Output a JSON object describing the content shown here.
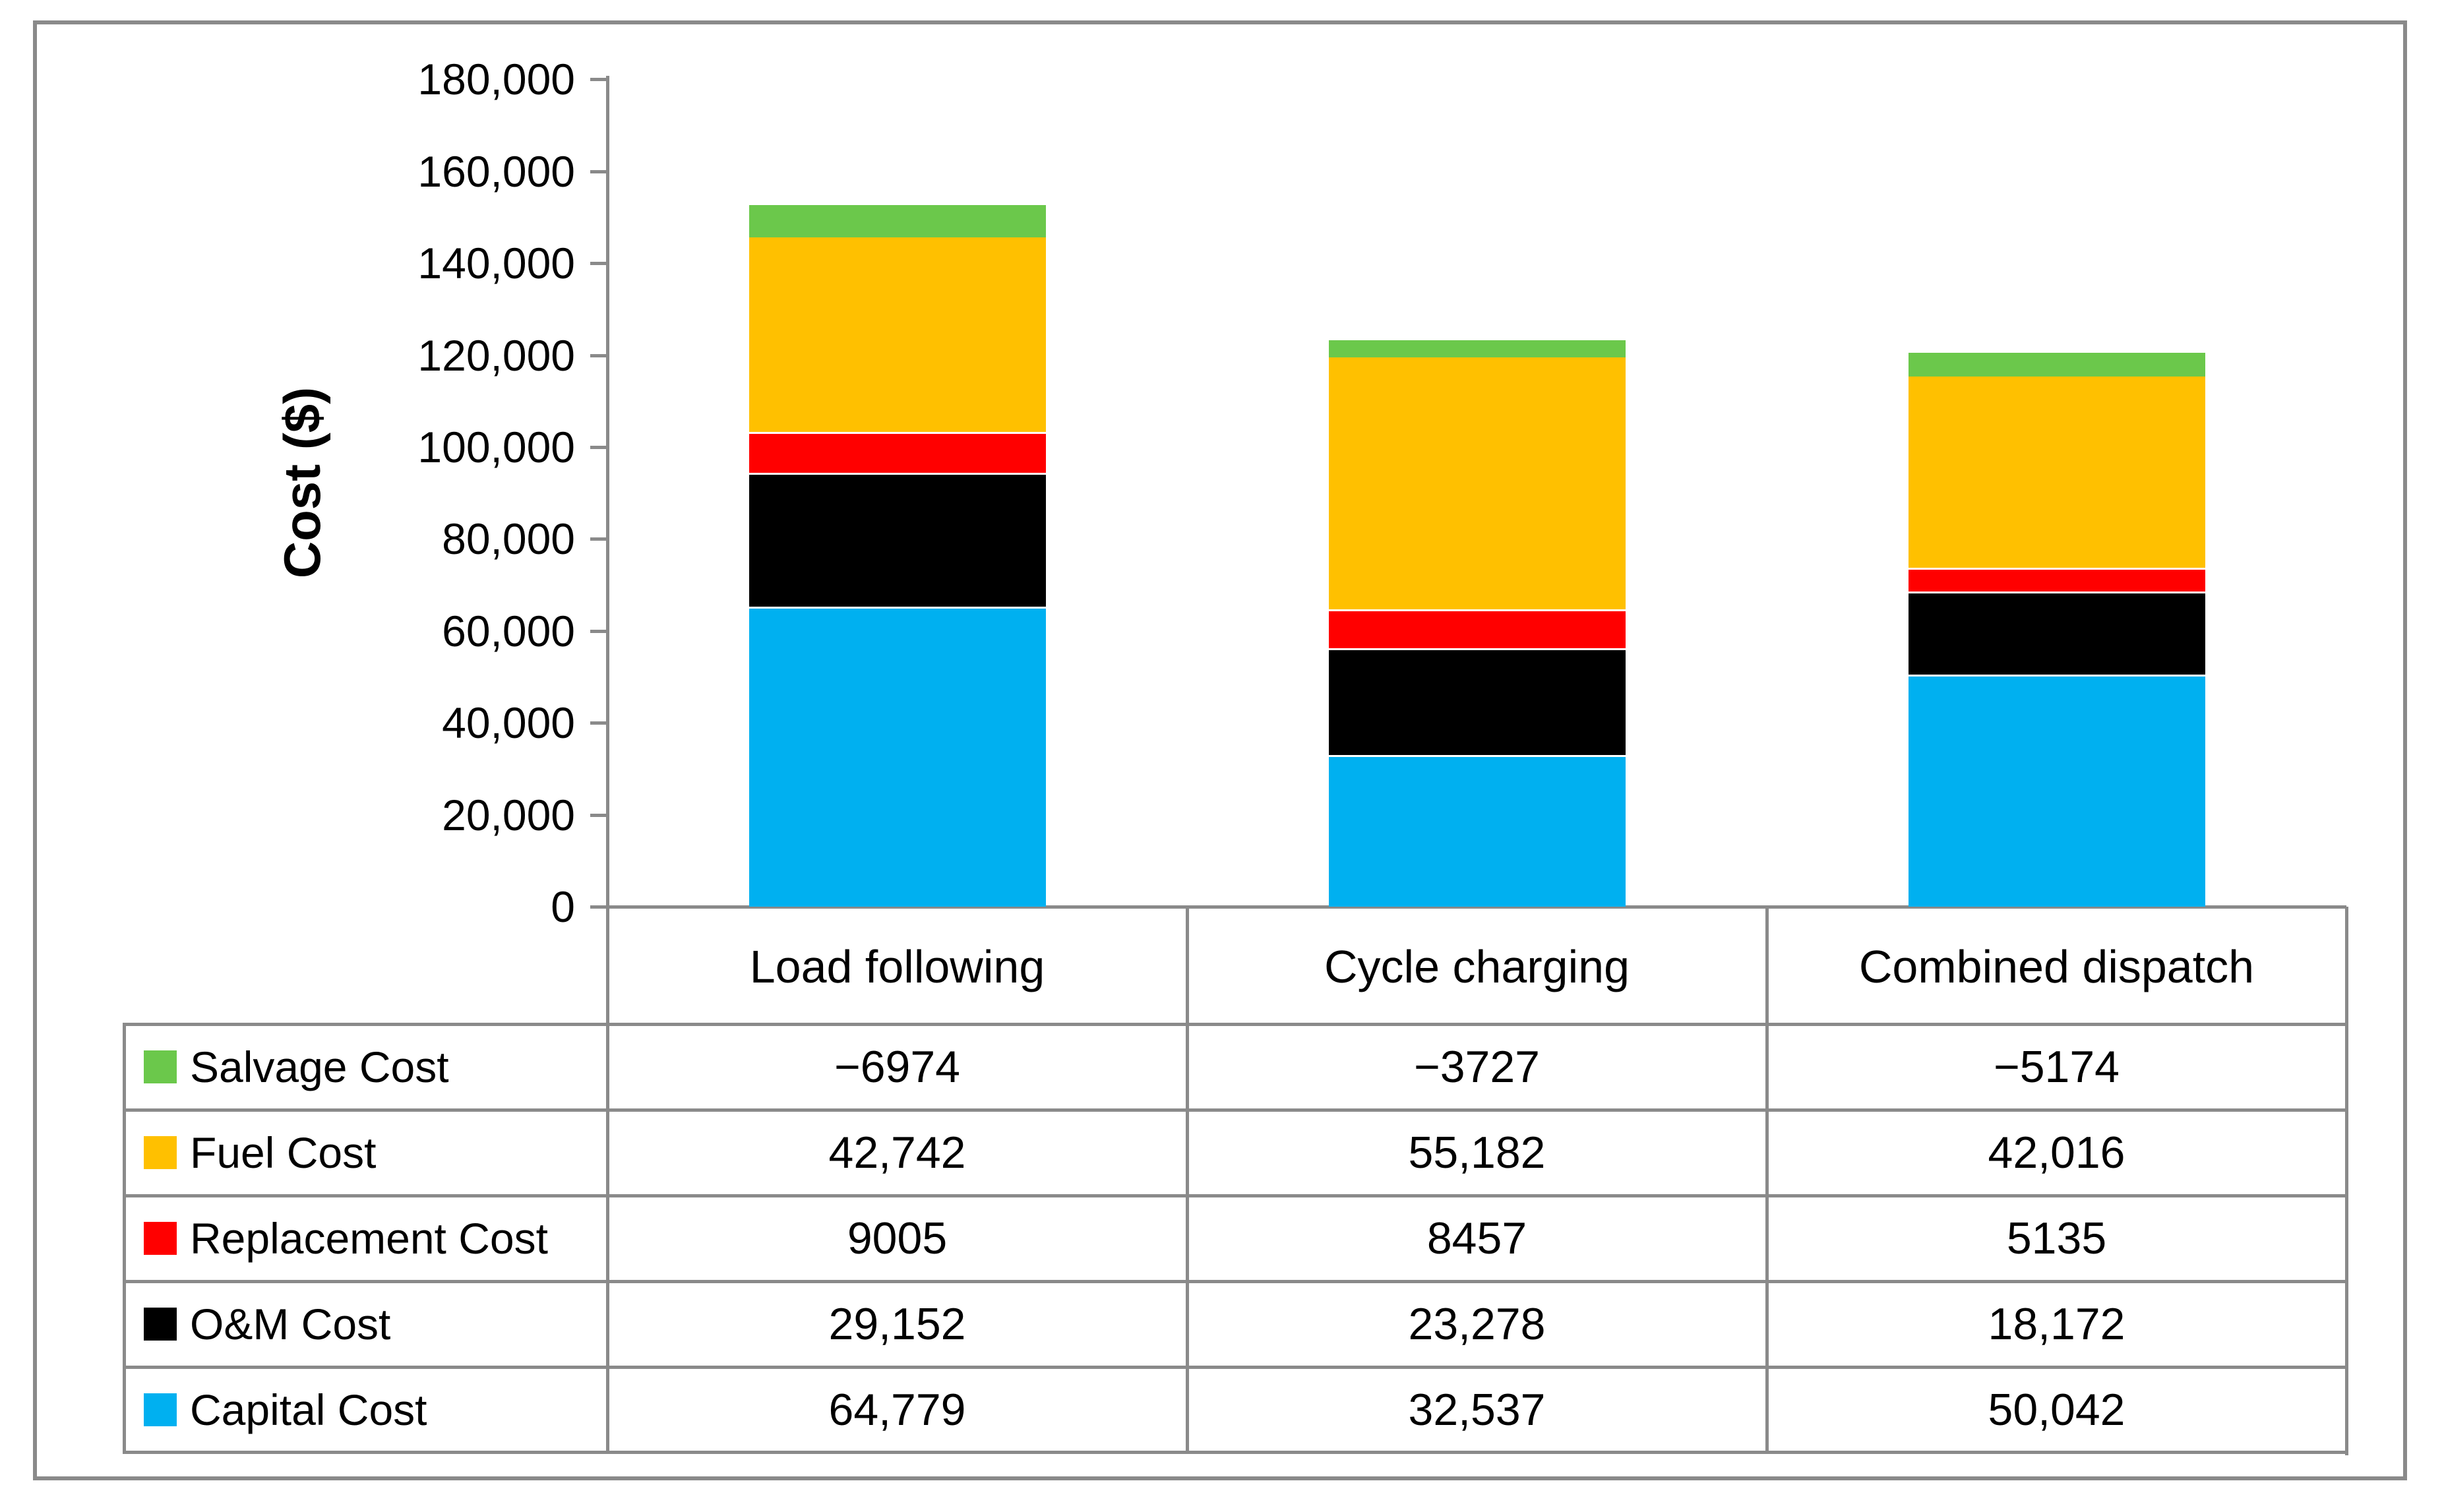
{
  "chart_data": {
    "type": "bar",
    "stacked": true,
    "title": "",
    "xlabel": "",
    "ylabel": "Cost ($)",
    "ylim": [
      0,
      180000
    ],
    "ytick_step": 20000,
    "y_tick_labels": [
      "0",
      "20,000",
      "40,000",
      "60,000",
      "80,000",
      "100,000",
      "120,000",
      "140,000",
      "160,000",
      "180,000"
    ],
    "grid": false,
    "legend_position": "data-table-left-column",
    "categories": [
      "Load following",
      "Cycle charging",
      "Combined dispatch"
    ],
    "stack_order_bottom_to_top": [
      "Capital Cost",
      "O&M Cost",
      "Replacement Cost",
      "Fuel Cost",
      "Salvage Cost"
    ],
    "salvage_plotted_as_magnitude": true,
    "series": [
      {
        "name": "Salvage Cost",
        "color": "#6BC84B",
        "values": [
          -6974,
          -3727,
          -5174
        ],
        "formatted": [
          "−6974",
          "−3727",
          "−5174"
        ]
      },
      {
        "name": "Fuel Cost",
        "color": "#FFC000",
        "values": [
          42742,
          55182,
          42016
        ],
        "formatted": [
          "42,742",
          "55,182",
          "42,016"
        ]
      },
      {
        "name": "Replacement Cost",
        "color": "#FF0000",
        "values": [
          9005,
          8457,
          5135
        ],
        "formatted": [
          "9005",
          "8457",
          "5135"
        ]
      },
      {
        "name": "O&M Cost",
        "color": "#000000",
        "values": [
          29152,
          23278,
          18172
        ],
        "formatted": [
          "29,152",
          "23,278",
          "18,172"
        ]
      },
      {
        "name": "Capital Cost",
        "color": "#00B0F0",
        "values": [
          64779,
          32537,
          50042
        ],
        "formatted": [
          "64,779",
          "32,537",
          "50,042"
        ]
      }
    ]
  },
  "colors": {
    "grid_line": "#8A8A8A",
    "background": "#FFFFFF",
    "segment_seam": "#FFFFFF"
  }
}
